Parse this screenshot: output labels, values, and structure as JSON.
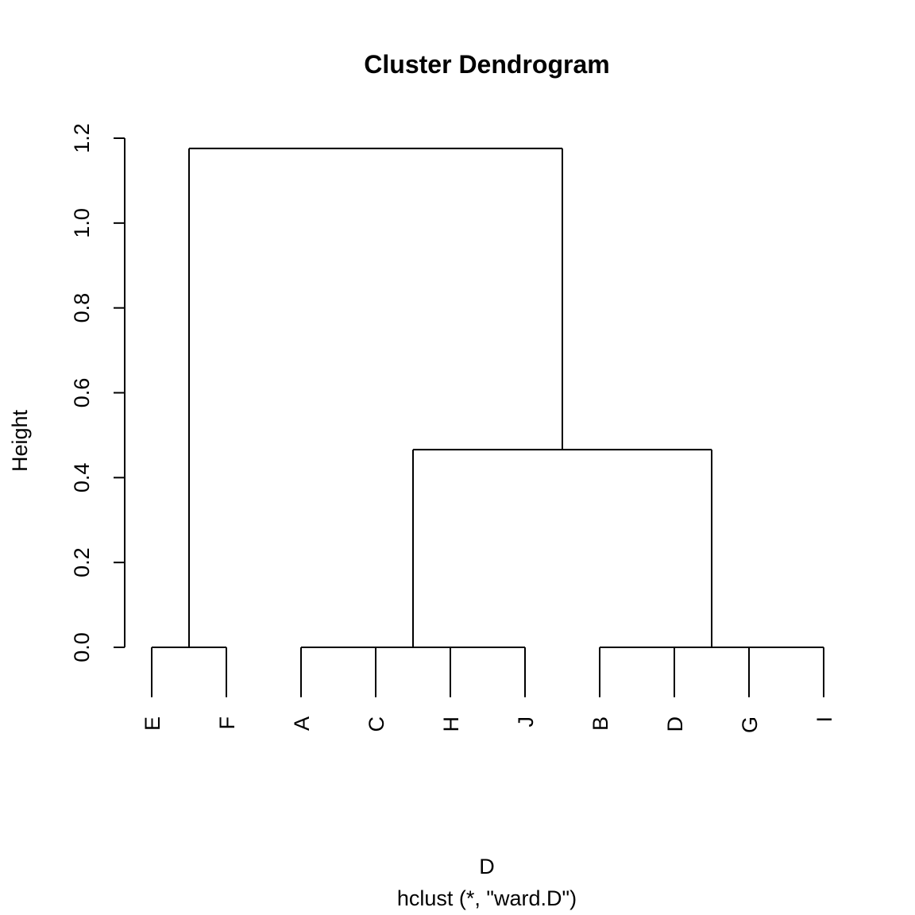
{
  "chart_data": {
    "type": "dendrogram",
    "title": "Cluster Dendrogram",
    "xlabel": "D",
    "subtitle": "hclust (*, \"ward.D\")",
    "ylabel": "Height",
    "labels": [
      "E",
      "F",
      "A",
      "C",
      "H",
      "J",
      "B",
      "D",
      "G",
      "I"
    ],
    "merge": [
      [
        -1,
        -2
      ],
      [
        -3,
        -4
      ],
      [
        -5,
        -6
      ],
      [
        2,
        3
      ],
      [
        -7,
        -8
      ],
      [
        -9,
        -10
      ],
      [
        5,
        6
      ],
      [
        4,
        7
      ],
      [
        1,
        8
      ]
    ],
    "height": [
      0,
      0,
      0,
      0,
      0,
      0,
      0,
      0.466,
      1.176
    ],
    "ylim": [
      0,
      1.2
    ],
    "yticks": [
      {
        "value": 0,
        "label": "0.0"
      },
      0.2,
      0.4,
      0.6,
      0.8,
      {
        "value": 1,
        "label": "1.0"
      },
      1.2
    ],
    "color": "#000000"
  }
}
